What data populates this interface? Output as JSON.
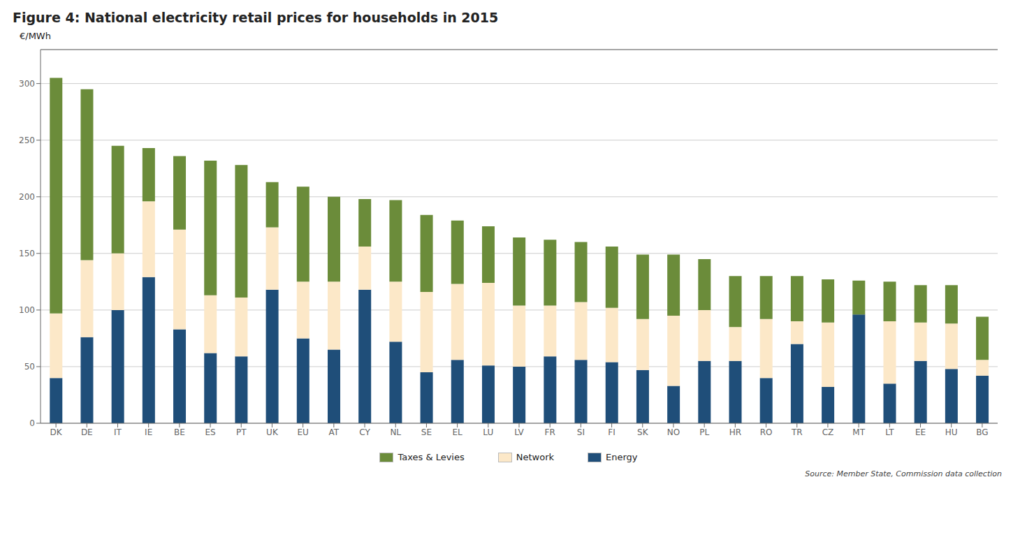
{
  "chart_data": {
    "type": "bar",
    "title": "Figure 4:   National electricity retail prices for households in 2015",
    "y_label": "€/MWh",
    "annotations": [
      "Source: Member State, Commission data collection"
    ],
    "categories": [
      "DK",
      "DE",
      "IT",
      "IE",
      "BE",
      "ES",
      "PT",
      "UK",
      "EU",
      "AT",
      "CY",
      "NL",
      "SE",
      "EL",
      "LU",
      "LV",
      "FR",
      "SI",
      "FI",
      "SK",
      "NO",
      "PL",
      "HR",
      "RO",
      "TR",
      "CZ",
      "MT",
      "LT",
      "EE",
      "HU",
      "BG"
    ],
    "series": [
      {
        "name": "Energy",
        "color": "#1f4e79",
        "values": [
          40,
          76,
          100,
          129,
          83,
          62,
          59,
          118,
          75,
          65,
          118,
          72,
          45,
          56,
          51,
          50,
          59,
          56,
          54,
          47,
          33,
          55,
          55,
          40,
          70,
          32,
          96,
          35,
          55,
          48,
          42
        ]
      },
      {
        "name": "Network",
        "color": "#fce8c8",
        "values": [
          57,
          68,
          50,
          67,
          88,
          51,
          52,
          55,
          50,
          60,
          38,
          53,
          71,
          67,
          73,
          54,
          45,
          51,
          48,
          45,
          62,
          45,
          30,
          52,
          20,
          57,
          0,
          55,
          34,
          40,
          14
        ]
      },
      {
        "name": "Taxes & Levies",
        "color": "#6b8c3a",
        "values": [
          208,
          151,
          95,
          47,
          65,
          119,
          117,
          40,
          84,
          75,
          42,
          72,
          68,
          56,
          50,
          60,
          58,
          53,
          54,
          57,
          54,
          45,
          45,
          38,
          40,
          38,
          30,
          35,
          33,
          34,
          38
        ]
      }
    ],
    "stacked": true,
    "ylim": [
      0,
      330
    ],
    "yticks": [
      0,
      50,
      100,
      150,
      200,
      250,
      300
    ],
    "grid": true,
    "legend": "bottom"
  }
}
